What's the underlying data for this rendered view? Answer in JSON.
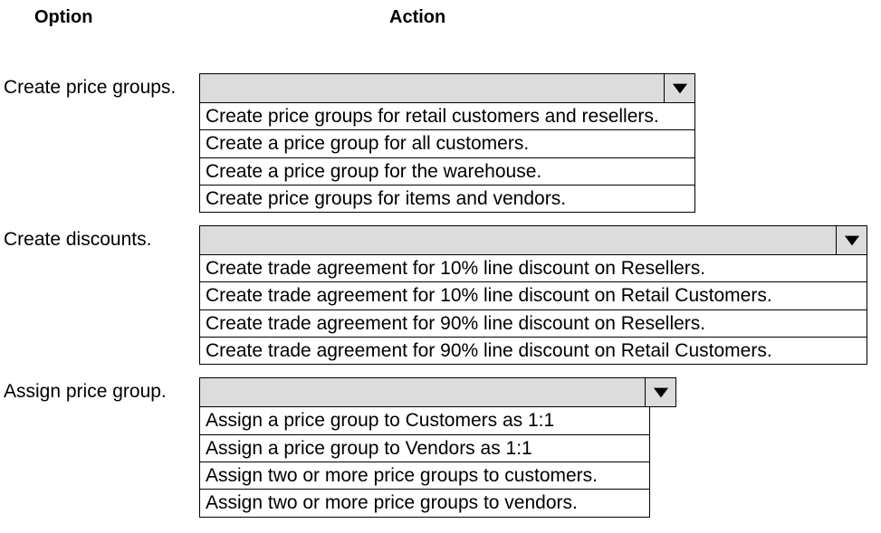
{
  "headers": {
    "option": "Option",
    "action": "Action"
  },
  "rows": [
    {
      "label": "Create price groups.",
      "dropdown_width": 548,
      "list_width": 548,
      "options": [
        "Create price groups for retail customers and resellers.",
        "Create a price group for all customers.",
        "Create a price group for the warehouse.",
        "Create price groups for items and vendors."
      ]
    },
    {
      "label": "Create discounts.",
      "dropdown_width": 738,
      "list_width": 738,
      "options": [
        "Create trade agreement for 10% line discount on Resellers.",
        "Create trade agreement for 10% line discount on Retail Customers.",
        "Create trade agreement for 90% line discount on Resellers.",
        "Create trade agreement for 90% line discount on Retail Customers."
      ]
    },
    {
      "label": "Assign price group.",
      "dropdown_width": 527,
      "list_width": 498,
      "options": [
        "Assign a price group to Customers as 1:1",
        "Assign a price group to Vendors as 1:1",
        "Assign two or more price groups to customers.",
        "Assign two or more price groups to vendors."
      ]
    }
  ],
  "colors": {
    "dropdown_bg": "#dcdcdc",
    "border": "#000000",
    "text": "#000000",
    "page_bg": "#ffffff"
  }
}
